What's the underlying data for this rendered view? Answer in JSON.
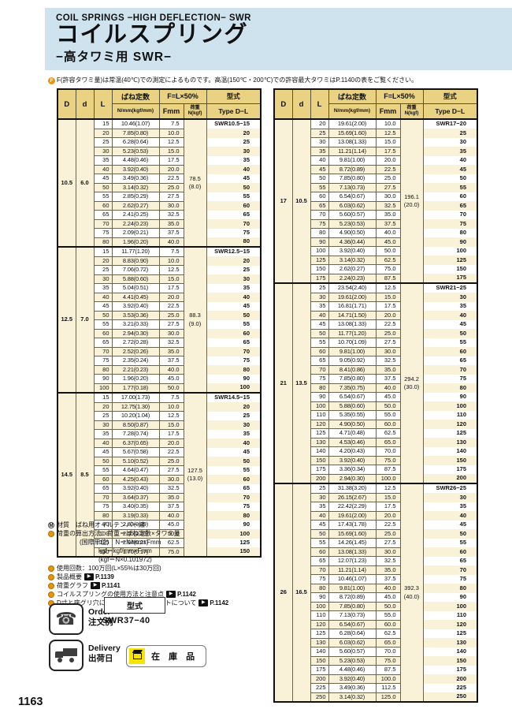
{
  "header": {
    "eyebrow": "COIL SPRINGS −HIGH DEFLECTION− SWR",
    "title": "コイルスプリング",
    "subtitle": "−高タワミ用 SWR−"
  },
  "top_note": "F(許容タワミ量)は常温(40℃)での測定によるものです。高温(150℃・200℃)での許容最大タワミはP.1140の表をご覧ください。",
  "table_headers": {
    "D": "D",
    "d": "d",
    "L": "L",
    "rate": "ばね定数",
    "rate_unit": "N/mm(kgf/mm)",
    "f_group": "F=L×50%",
    "f": "Fmm",
    "load": "荷重",
    "load_unit": "N(kgf)",
    "model": "型式",
    "model_unit": "Type D−L"
  },
  "tables": [
    {
      "id": "table-left",
      "sections": [
        {
          "D": "10.5",
          "d": "6.0",
          "load_n": "78.5",
          "load_kgf": "(8.0)",
          "model_label": "SWR10.5−15",
          "rows": [
            [
              "15",
              "10.46(1.07)",
              "7.5"
            ],
            [
              "20",
              "7.85(0.80)",
              "10.0"
            ],
            [
              "25",
              "6.28(0.64)",
              "12.5"
            ],
            [
              "30",
              "5.23(0.53)",
              "15.0"
            ],
            [
              "35",
              "4.48(0.46)",
              "17.5"
            ],
            [
              "40",
              "3.92(0.40)",
              "20.0"
            ],
            [
              "45",
              "3.49(0.36)",
              "22.5"
            ],
            [
              "50",
              "3.14(0.32)",
              "25.0"
            ],
            [
              "55",
              "2.85(0.29)",
              "27.5"
            ],
            [
              "60",
              "2.62(0.27)",
              "30.0"
            ],
            [
              "65",
              "2.41(0.25)",
              "32.5"
            ],
            [
              "70",
              "2.24(0.23)",
              "35.0"
            ],
            [
              "75",
              "2.09(0.21)",
              "37.5"
            ],
            [
              "80",
              "1.96(0.20)",
              "40.0"
            ]
          ]
        },
        {
          "D": "12.5",
          "d": "7.0",
          "load_n": "88.3",
          "load_kgf": "(9.0)",
          "model_label": "SWR12.5−15",
          "rows": [
            [
              "15",
              "11.77(1.20)",
              "7.5"
            ],
            [
              "20",
              "8.83(0.90)",
              "10.0"
            ],
            [
              "25",
              "7.06(0.72)",
              "12.5"
            ],
            [
              "30",
              "5.88(0.60)",
              "15.0"
            ],
            [
              "35",
              "5.04(0.51)",
              "17.5"
            ],
            [
              "40",
              "4.41(0.45)",
              "20.0"
            ],
            [
              "45",
              "3.92(0.40)",
              "22.5"
            ],
            [
              "50",
              "3.53(0.36)",
              "25.0"
            ],
            [
              "55",
              "3.21(0.33)",
              "27.5"
            ],
            [
              "60",
              "2.94(0.30)",
              "30.0"
            ],
            [
              "65",
              "2.72(0.28)",
              "32.5"
            ],
            [
              "70",
              "2.52(0.26)",
              "35.0"
            ],
            [
              "75",
              "2.35(0.24)",
              "37.5"
            ],
            [
              "80",
              "2.21(0.23)",
              "40.0"
            ],
            [
              "90",
              "1.96(0.20)",
              "45.0"
            ],
            [
              "100",
              "1.77(0.18)",
              "50.0"
            ]
          ]
        },
        {
          "D": "14.5",
          "d": "8.5",
          "load_n": "127.5",
          "load_kgf": "(13.0)",
          "model_label": "SWR14.5−15",
          "rows": [
            [
              "15",
              "17.00(1.73)",
              "7.5"
            ],
            [
              "20",
              "12.75(1.30)",
              "10.0"
            ],
            [
              "25",
              "10.20(1.04)",
              "12.5"
            ],
            [
              "30",
              "8.50(0.87)",
              "15.0"
            ],
            [
              "35",
              "7.28(0.74)",
              "17.5"
            ],
            [
              "40",
              "6.37(0.65)",
              "20.0"
            ],
            [
              "45",
              "5.67(0.58)",
              "22.5"
            ],
            [
              "50",
              "5.10(0.52)",
              "25.0"
            ],
            [
              "55",
              "4.64(0.47)",
              "27.5"
            ],
            [
              "60",
              "4.25(0.43)",
              "30.0"
            ],
            [
              "65",
              "3.92(0.40)",
              "32.5"
            ],
            [
              "70",
              "3.64(0.37)",
              "35.0"
            ],
            [
              "75",
              "3.40(0.35)",
              "37.5"
            ],
            [
              "80",
              "3.19(0.33)",
              "40.0"
            ],
            [
              "90",
              "2.83(0.29)",
              "45.0"
            ],
            [
              "100",
              "2.55(0.26)",
              "50.0"
            ],
            [
              "125",
              "2.04(0.21)",
              "62.5"
            ],
            [
              "150",
              "1.70(0.17)",
              "75.0"
            ]
          ]
        }
      ]
    },
    {
      "id": "table-right",
      "sections": [
        {
          "D": "17",
          "d": "10.5",
          "load_n": "196.1",
          "load_kgf": "(20.0)",
          "model_label": "SWR17−20",
          "rows": [
            [
              "20",
              "19.61(2.00)",
              "10.0"
            ],
            [
              "25",
              "15.69(1.60)",
              "12.5"
            ],
            [
              "30",
              "13.08(1.33)",
              "15.0"
            ],
            [
              "35",
              "11.21(1.14)",
              "17.5"
            ],
            [
              "40",
              "9.81(1.00)",
              "20.0"
            ],
            [
              "45",
              "8.72(0.89)",
              "22.5"
            ],
            [
              "50",
              "7.85(0.80)",
              "25.0"
            ],
            [
              "55",
              "7.13(0.73)",
              "27.5"
            ],
            [
              "60",
              "6.54(0.67)",
              "30.0"
            ],
            [
              "65",
              "6.03(0.62)",
              "32.5"
            ],
            [
              "70",
              "5.60(0.57)",
              "35.0"
            ],
            [
              "75",
              "5.23(0.53)",
              "37.5"
            ],
            [
              "80",
              "4.90(0.50)",
              "40.0"
            ],
            [
              "90",
              "4.36(0.44)",
              "45.0"
            ],
            [
              "100",
              "3.92(0.40)",
              "50.0"
            ],
            [
              "125",
              "3.14(0.32)",
              "62.5"
            ],
            [
              "150",
              "2.62(0.27)",
              "75.0"
            ],
            [
              "175",
              "2.24(0.23)",
              "87.5"
            ]
          ]
        },
        {
          "D": "21",
          "d": "13.5",
          "load_n": "294.2",
          "load_kgf": "(30.0)",
          "model_label": "SWR21−25",
          "rows": [
            [
              "25",
              "23.54(2.40)",
              "12.5"
            ],
            [
              "30",
              "19.61(2.00)",
              "15.0"
            ],
            [
              "35",
              "16.81(1.71)",
              "17.5"
            ],
            [
              "40",
              "14.71(1.50)",
              "20.0"
            ],
            [
              "45",
              "13.08(1.33)",
              "22.5"
            ],
            [
              "50",
              "11.77(1.20)",
              "25.0"
            ],
            [
              "55",
              "10.70(1.09)",
              "27.5"
            ],
            [
              "60",
              "9.81(1.00)",
              "30.0"
            ],
            [
              "65",
              "9.05(0.92)",
              "32.5"
            ],
            [
              "70",
              "8.41(0.86)",
              "35.0"
            ],
            [
              "75",
              "7.85(0.80)",
              "37.5"
            ],
            [
              "80",
              "7.35(0.75)",
              "40.0"
            ],
            [
              "90",
              "6.54(0.67)",
              "45.0"
            ],
            [
              "100",
              "5.88(0.60)",
              "50.0"
            ],
            [
              "110",
              "5.35(0.55)",
              "55.0"
            ],
            [
              "120",
              "4.90(0.50)",
              "60.0"
            ],
            [
              "125",
              "4.71(0.48)",
              "62.5"
            ],
            [
              "130",
              "4.53(0.46)",
              "65.0"
            ],
            [
              "140",
              "4.20(0.43)",
              "70.0"
            ],
            [
              "150",
              "3.92(0.40)",
              "75.0"
            ],
            [
              "175",
              "3.36(0.34)",
              "87.5"
            ],
            [
              "200",
              "2.94(0.30)",
              "100.0"
            ]
          ]
        },
        {
          "D": "26",
          "d": "16.5",
          "load_n": "392.3",
          "load_kgf": "(40.0)",
          "model_label": "SWR26−25",
          "rows": [
            [
              "25",
              "31.38(3.20)",
              "12.5"
            ],
            [
              "30",
              "26.15(2.67)",
              "15.0"
            ],
            [
              "35",
              "22.42(2.29)",
              "17.5"
            ],
            [
              "40",
              "19.61(2.00)",
              "20.0"
            ],
            [
              "45",
              "17.43(1.78)",
              "22.5"
            ],
            [
              "50",
              "15.69(1.60)",
              "25.0"
            ],
            [
              "55",
              "14.26(1.45)",
              "27.5"
            ],
            [
              "60",
              "13.08(1.33)",
              "30.0"
            ],
            [
              "65",
              "12.07(1.23)",
              "32.5"
            ],
            [
              "70",
              "11.21(1.14)",
              "35.0"
            ],
            [
              "75",
              "10.46(1.07)",
              "37.5"
            ],
            [
              "80",
              "9.81(1.00)",
              "40.0"
            ],
            [
              "90",
              "8.72(0.89)",
              "45.0"
            ],
            [
              "100",
              "7.85(0.80)",
              "50.0"
            ],
            [
              "110",
              "7.13(0.73)",
              "55.0"
            ],
            [
              "120",
              "6.54(0.67)",
              "60.0"
            ],
            [
              "125",
              "6.28(0.64)",
              "62.5"
            ],
            [
              "130",
              "6.03(0.62)",
              "65.0"
            ],
            [
              "140",
              "5.60(0.57)",
              "70.0"
            ],
            [
              "150",
              "5.23(0.53)",
              "75.0"
            ],
            [
              "175",
              "4.48(0.46)",
              "87.5"
            ],
            [
              "200",
              "3.92(0.40)",
              "100.0"
            ],
            [
              "225",
              "3.49(0.36)",
              "112.5"
            ],
            [
              "250",
              "3.14(0.32)",
              "125.0"
            ]
          ]
        }
      ]
    }
  ],
  "notes": [
    {
      "icon": "M",
      "text": "材質　ばね用オイルテンパー線"
    },
    {
      "icon": "dot",
      "text": "荷重の算出方法：荷重＝ばね定数×タワミ量"
    },
    {
      "indent": 1,
      "text": "(国際単位)　N＝N/mm×Fmm"
    },
    {
      "indent": 2,
      "text": "kgf＝kgf/mm×Fmm"
    },
    {
      "indent": 2,
      "text": "(kgf＝N×0.101972)"
    },
    {
      "icon": "dot",
      "text": "使用回数：100万回(L×55%は30万回)"
    },
    {
      "icon": "dot",
      "text": "製品概要",
      "ref": "P.1139"
    },
    {
      "icon": "dot",
      "text": "荷重グラフ",
      "ref": "P.1141"
    },
    {
      "icon": "dot",
      "text": "コイルスプリングの使用方法と注意点",
      "ref": "P.1142"
    },
    {
      "icon": "dot",
      "text": "D寸と座グリ穴について、d寸とシャフトについて",
      "ref": "P.1142"
    }
  ],
  "order": {
    "label_en": "Order",
    "label_ja": "注文例",
    "model_box_label": "型式",
    "example": "SWR37−40"
  },
  "delivery": {
    "label_en": "Delivery",
    "label_ja": "出荷日",
    "stock_label": "在 庫 品"
  },
  "page_number": "1163",
  "colors": {
    "banner": "#cfe3ef",
    "header_tan": "#e9d282",
    "row_cream": "#f9f2d8",
    "stock_yellow": "#f6e400",
    "badge_orange": "#e7940e"
  }
}
